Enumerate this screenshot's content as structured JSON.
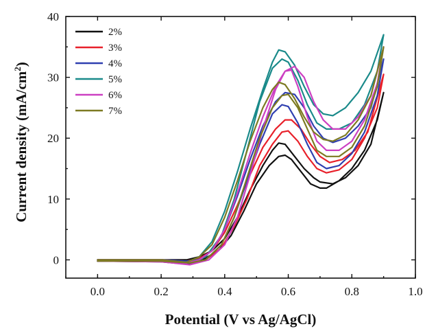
{
  "chart_data": {
    "type": "line",
    "title": "",
    "xlabel": "Potential (V vs Ag/AgCl)",
    "ylabel": "Current density (mA/cm",
    "ylabel_sup": "2",
    "ylabel_end": ")",
    "xlim": [
      -0.1,
      1.0
    ],
    "ylim": [
      -3,
      40
    ],
    "xticks": [
      0.0,
      0.2,
      0.4,
      0.6,
      0.8,
      1.0
    ],
    "xtick_labels": [
      "0.0",
      "0.2",
      "0.4",
      "0.6",
      "0.8",
      "1.0"
    ],
    "yticks": [
      0,
      10,
      20,
      30,
      40
    ],
    "ytick_labels": [
      "0",
      "10",
      "20",
      "30",
      "40"
    ],
    "grid": false,
    "legend": "top-left",
    "series": [
      {
        "name": "2%",
        "color": "#111111",
        "forward": [
          [
            0.0,
            0
          ],
          [
            0.2,
            0
          ],
          [
            0.28,
            0
          ],
          [
            0.32,
            0.5
          ],
          [
            0.36,
            1.5
          ],
          [
            0.4,
            3.5
          ],
          [
            0.44,
            7
          ],
          [
            0.48,
            11.5
          ],
          [
            0.52,
            15.5
          ],
          [
            0.55,
            18
          ],
          [
            0.57,
            19.2
          ],
          [
            0.59,
            19
          ],
          [
            0.62,
            17
          ],
          [
            0.65,
            15
          ],
          [
            0.68,
            13.5
          ],
          [
            0.7,
            12.8
          ],
          [
            0.74,
            12.5
          ],
          [
            0.78,
            13.5
          ],
          [
            0.82,
            15.5
          ],
          [
            0.86,
            19
          ],
          [
            0.9,
            27.5
          ]
        ],
        "reverse": [
          [
            0.9,
            27.5
          ],
          [
            0.88,
            23
          ],
          [
            0.84,
            18
          ],
          [
            0.8,
            15
          ],
          [
            0.76,
            13
          ],
          [
            0.72,
            11.8
          ],
          [
            0.7,
            11.8
          ],
          [
            0.67,
            12.5
          ],
          [
            0.64,
            14.5
          ],
          [
            0.61,
            16.5
          ],
          [
            0.59,
            17.2
          ],
          [
            0.57,
            17
          ],
          [
            0.54,
            15.5
          ],
          [
            0.5,
            12.5
          ],
          [
            0.46,
            8
          ],
          [
            0.42,
            4
          ],
          [
            0.38,
            1.5
          ],
          [
            0.33,
            0
          ],
          [
            0.28,
            -0.7
          ],
          [
            0.2,
            -0.3
          ],
          [
            0.0,
            -0.2
          ]
        ]
      },
      {
        "name": "3%",
        "color": "#e8202a",
        "forward": [
          [
            0.0,
            0
          ],
          [
            0.2,
            0
          ],
          [
            0.28,
            -0.2
          ],
          [
            0.32,
            0.2
          ],
          [
            0.36,
            1.5
          ],
          [
            0.4,
            4.5
          ],
          [
            0.44,
            9
          ],
          [
            0.48,
            14
          ],
          [
            0.52,
            18.5
          ],
          [
            0.56,
            21.5
          ],
          [
            0.59,
            23
          ],
          [
            0.61,
            23
          ],
          [
            0.64,
            21.5
          ],
          [
            0.67,
            19
          ],
          [
            0.7,
            17
          ],
          [
            0.73,
            16
          ],
          [
            0.77,
            16.5
          ],
          [
            0.81,
            18
          ],
          [
            0.85,
            21
          ],
          [
            0.9,
            30.5
          ]
        ],
        "reverse": [
          [
            0.9,
            30.5
          ],
          [
            0.88,
            25
          ],
          [
            0.84,
            20
          ],
          [
            0.8,
            16.5
          ],
          [
            0.76,
            14.8
          ],
          [
            0.72,
            14.3
          ],
          [
            0.69,
            15
          ],
          [
            0.66,
            17
          ],
          [
            0.63,
            19.5
          ],
          [
            0.6,
            21.2
          ],
          [
            0.58,
            21
          ],
          [
            0.55,
            19
          ],
          [
            0.51,
            15.5
          ],
          [
            0.47,
            10
          ],
          [
            0.43,
            5.5
          ],
          [
            0.39,
            2
          ],
          [
            0.34,
            0
          ],
          [
            0.29,
            -0.5
          ],
          [
            0.2,
            -0.2
          ],
          [
            0.0,
            -0.2
          ]
        ]
      },
      {
        "name": "4%",
        "color": "#2f3fb0",
        "forward": [
          [
            0.0,
            0
          ],
          [
            0.2,
            0
          ],
          [
            0.28,
            -0.2
          ],
          [
            0.32,
            0
          ],
          [
            0.36,
            1.5
          ],
          [
            0.4,
            5
          ],
          [
            0.44,
            10.5
          ],
          [
            0.48,
            16.5
          ],
          [
            0.52,
            22
          ],
          [
            0.56,
            26
          ],
          [
            0.59,
            27.5
          ],
          [
            0.62,
            27.2
          ],
          [
            0.65,
            25
          ],
          [
            0.68,
            22
          ],
          [
            0.71,
            20
          ],
          [
            0.74,
            19.3
          ],
          [
            0.78,
            20
          ],
          [
            0.82,
            22
          ],
          [
            0.86,
            25
          ],
          [
            0.9,
            33
          ]
        ],
        "reverse": [
          [
            0.9,
            33
          ],
          [
            0.88,
            27
          ],
          [
            0.84,
            21
          ],
          [
            0.8,
            17.5
          ],
          [
            0.76,
            15.5
          ],
          [
            0.72,
            15
          ],
          [
            0.69,
            16
          ],
          [
            0.66,
            19
          ],
          [
            0.63,
            22.5
          ],
          [
            0.6,
            25.2
          ],
          [
            0.58,
            25.5
          ],
          [
            0.55,
            24
          ],
          [
            0.51,
            19
          ],
          [
            0.47,
            13
          ],
          [
            0.43,
            7
          ],
          [
            0.39,
            2.5
          ],
          [
            0.34,
            0
          ],
          [
            0.29,
            -0.5
          ],
          [
            0.2,
            -0.2
          ],
          [
            0.0,
            -0.2
          ]
        ]
      },
      {
        "name": "5%",
        "color": "#1a8a8a",
        "forward": [
          [
            0.0,
            0
          ],
          [
            0.2,
            0
          ],
          [
            0.28,
            -0.4
          ],
          [
            0.32,
            0.5
          ],
          [
            0.36,
            3
          ],
          [
            0.4,
            8
          ],
          [
            0.44,
            14.5
          ],
          [
            0.48,
            21.5
          ],
          [
            0.52,
            28
          ],
          [
            0.55,
            32.5
          ],
          [
            0.57,
            34.5
          ],
          [
            0.59,
            34.2
          ],
          [
            0.62,
            32
          ],
          [
            0.65,
            28.5
          ],
          [
            0.68,
            25.5
          ],
          [
            0.71,
            24
          ],
          [
            0.74,
            23.7
          ],
          [
            0.78,
            25
          ],
          [
            0.82,
            27.5
          ],
          [
            0.86,
            31
          ],
          [
            0.9,
            37
          ]
        ],
        "reverse": [
          [
            0.9,
            37
          ],
          [
            0.88,
            31
          ],
          [
            0.84,
            25.5
          ],
          [
            0.8,
            22.5
          ],
          [
            0.76,
            21.5
          ],
          [
            0.72,
            21.5
          ],
          [
            0.69,
            22.5
          ],
          [
            0.66,
            25.5
          ],
          [
            0.63,
            29.5
          ],
          [
            0.6,
            32.5
          ],
          [
            0.58,
            33
          ],
          [
            0.55,
            31.5
          ],
          [
            0.51,
            26
          ],
          [
            0.47,
            18
          ],
          [
            0.43,
            10
          ],
          [
            0.39,
            4
          ],
          [
            0.34,
            0.5
          ],
          [
            0.29,
            -0.5
          ],
          [
            0.2,
            -0.2
          ],
          [
            0.0,
            -0.2
          ]
        ]
      },
      {
        "name": "6%",
        "color": "#cc3fc2",
        "forward": [
          [
            0.0,
            0
          ],
          [
            0.2,
            0
          ],
          [
            0.28,
            -0.5
          ],
          [
            0.32,
            0
          ],
          [
            0.36,
            1.5
          ],
          [
            0.4,
            5
          ],
          [
            0.44,
            11
          ],
          [
            0.48,
            17.5
          ],
          [
            0.52,
            23.5
          ],
          [
            0.56,
            28.5
          ],
          [
            0.59,
            31
          ],
          [
            0.62,
            31.8
          ],
          [
            0.65,
            30
          ],
          [
            0.68,
            26
          ],
          [
            0.71,
            23
          ],
          [
            0.74,
            21.5
          ],
          [
            0.78,
            21.5
          ],
          [
            0.82,
            23.5
          ],
          [
            0.86,
            27
          ],
          [
            0.9,
            35
          ]
        ],
        "reverse": [
          [
            0.9,
            35
          ],
          [
            0.88,
            29
          ],
          [
            0.84,
            23
          ],
          [
            0.8,
            19.5
          ],
          [
            0.76,
            18
          ],
          [
            0.72,
            18
          ],
          [
            0.69,
            19.5
          ],
          [
            0.66,
            23.5
          ],
          [
            0.63,
            28.5
          ],
          [
            0.61,
            31.2
          ],
          [
            0.59,
            31
          ],
          [
            0.56,
            28
          ],
          [
            0.52,
            21.5
          ],
          [
            0.48,
            14
          ],
          [
            0.44,
            7
          ],
          [
            0.4,
            2.5
          ],
          [
            0.35,
            0
          ],
          [
            0.29,
            -0.8
          ],
          [
            0.2,
            -0.3
          ],
          [
            0.0,
            -0.2
          ]
        ]
      },
      {
        "name": "7%",
        "color": "#7d7a22",
        "forward": [
          [
            0.0,
            0
          ],
          [
            0.2,
            0
          ],
          [
            0.28,
            -0.4
          ],
          [
            0.32,
            0.5
          ],
          [
            0.36,
            2.5
          ],
          [
            0.4,
            7
          ],
          [
            0.44,
            13
          ],
          [
            0.48,
            19.5
          ],
          [
            0.52,
            25
          ],
          [
            0.55,
            28
          ],
          [
            0.57,
            29.2
          ],
          [
            0.59,
            28.8
          ],
          [
            0.62,
            26.5
          ],
          [
            0.65,
            23.5
          ],
          [
            0.68,
            21
          ],
          [
            0.71,
            19.8
          ],
          [
            0.74,
            19.5
          ],
          [
            0.78,
            20.5
          ],
          [
            0.82,
            23
          ],
          [
            0.86,
            27
          ],
          [
            0.9,
            35
          ]
        ],
        "reverse": [
          [
            0.9,
            35
          ],
          [
            0.88,
            28.5
          ],
          [
            0.84,
            22
          ],
          [
            0.8,
            18.5
          ],
          [
            0.76,
            17
          ],
          [
            0.72,
            17
          ],
          [
            0.69,
            18
          ],
          [
            0.66,
            21.5
          ],
          [
            0.63,
            25
          ],
          [
            0.6,
            27.2
          ],
          [
            0.58,
            27
          ],
          [
            0.55,
            25
          ],
          [
            0.51,
            20
          ],
          [
            0.47,
            13.5
          ],
          [
            0.43,
            7
          ],
          [
            0.39,
            2.5
          ],
          [
            0.34,
            0
          ],
          [
            0.29,
            -0.5
          ],
          [
            0.2,
            -0.2
          ],
          [
            0.0,
            -0.2
          ]
        ]
      }
    ]
  }
}
